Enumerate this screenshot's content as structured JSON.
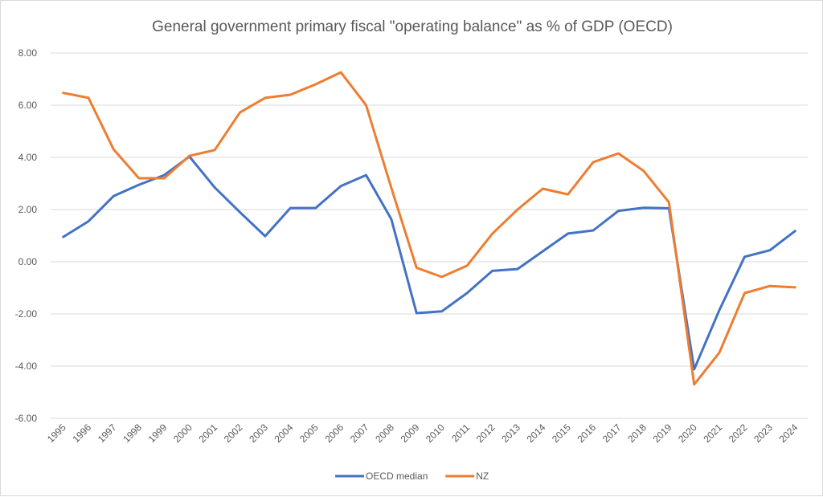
{
  "chart_data": {
    "type": "line",
    "title": "General government primary fiscal \"operating balance\" as % of GDP (OECD)",
    "xlabel": "",
    "ylabel": "",
    "ylim": [
      -6,
      8
    ],
    "yticks": [
      8,
      6,
      4,
      2,
      0,
      -2,
      -4,
      -6
    ],
    "ytick_labels": [
      "8.00",
      "6.00",
      "4.00",
      "2.00",
      "0.00",
      "-2.00",
      "-4.00",
      "-6.00"
    ],
    "grid": true,
    "legend_position": "bottom",
    "categories": [
      "1995",
      "1996",
      "1997",
      "1998",
      "1999",
      "2000",
      "2001",
      "2002",
      "2003",
      "2004",
      "2005",
      "2006",
      "2007",
      "2008",
      "2009",
      "2010",
      "2011",
      "2012",
      "2013",
      "2014",
      "2015",
      "2016",
      "2017",
      "2018",
      "2019",
      "2020",
      "2021",
      "2022",
      "2023",
      "2024"
    ],
    "series": [
      {
        "name": "OECD median",
        "color": "#4472c4",
        "values": [
          0.95,
          1.55,
          2.52,
          2.95,
          3.32,
          4.03,
          2.85,
          1.9,
          0.98,
          2.06,
          2.06,
          2.9,
          3.32,
          1.63,
          -1.97,
          -1.9,
          -1.2,
          -0.35,
          -0.28,
          0.4,
          1.08,
          1.2,
          1.95,
          2.07,
          2.05,
          -4.12,
          -1.85,
          0.19,
          0.44,
          1.18
        ]
      },
      {
        "name": "NZ",
        "color": "#ed7d31",
        "values": [
          6.47,
          6.28,
          4.3,
          3.2,
          3.2,
          4.06,
          4.28,
          5.72,
          6.28,
          6.4,
          6.8,
          7.26,
          6.0,
          2.83,
          -0.23,
          -0.58,
          -0.15,
          1.07,
          2.0,
          2.8,
          2.58,
          3.82,
          4.15,
          3.48,
          2.28,
          -4.7,
          -3.48,
          -1.2,
          -0.93,
          -0.98
        ]
      }
    ]
  }
}
